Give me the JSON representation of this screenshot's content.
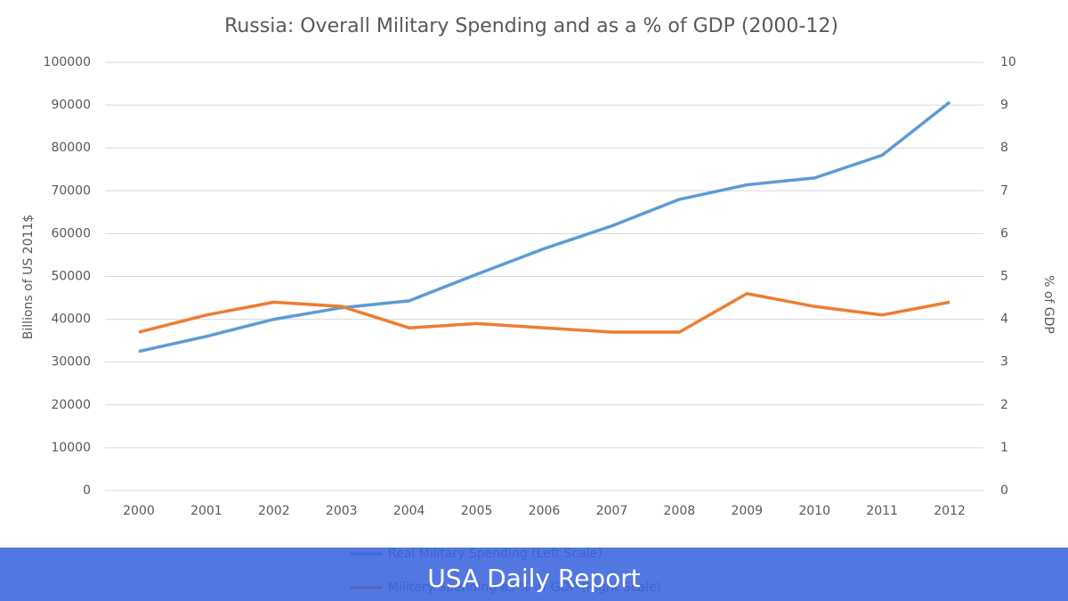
{
  "chart_data": {
    "type": "line",
    "title": "Russia: Overall Military Spending and as a % of GDP (2000-12)",
    "y_label": "Billions of US 2011$",
    "y2_label": "% of GDP",
    "categories": [
      "2000",
      "2001",
      "2002",
      "2003",
      "2004",
      "2005",
      "2006",
      "2007",
      "2008",
      "2009",
      "2010",
      "2011",
      "2012"
    ],
    "series": [
      {
        "name": "Real Military Spending (Left Scale)",
        "color": "#5b9bd5",
        "values": [
          32500,
          36000,
          40000,
          42700,
          44300,
          50500,
          56500,
          61800,
          68000,
          71400,
          73000,
          78300,
          90700
        ]
      },
      {
        "name": "Military Spending as % of GDP (Right Scale)",
        "color": "#ed7d31",
        "axis": "y2",
        "values": [
          3.7,
          4.1,
          4.4,
          4.3,
          3.8,
          3.9,
          3.8,
          3.7,
          3.7,
          4.6,
          4.3,
          4.1,
          4.4
        ]
      }
    ],
    "ylim": [
      0,
      100000
    ],
    "yticks": [
      0,
      10000,
      20000,
      30000,
      40000,
      50000,
      60000,
      70000,
      80000,
      90000,
      100000
    ],
    "y2lim": [
      0,
      10
    ],
    "y2ticks": [
      0,
      1,
      2,
      3,
      4,
      5,
      6,
      7,
      8,
      9,
      10
    ],
    "grid": true,
    "legend": "bottom"
  },
  "banner": "USA Daily Report"
}
